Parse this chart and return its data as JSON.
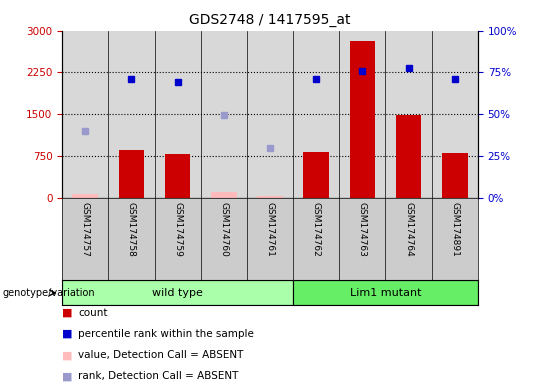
{
  "title": "GDS2748 / 1417595_at",
  "samples": [
    "GSM174757",
    "GSM174758",
    "GSM174759",
    "GSM174760",
    "GSM174761",
    "GSM174762",
    "GSM174763",
    "GSM174764",
    "GSM174891"
  ],
  "count_values": [
    null,
    850,
    780,
    null,
    null,
    820,
    2820,
    1480,
    810
  ],
  "count_absent": [
    60,
    null,
    null,
    110,
    30,
    null,
    null,
    null,
    null
  ],
  "rank_values": [
    null,
    2130,
    2080,
    null,
    null,
    2130,
    2280,
    2330,
    2130
  ],
  "rank_absent": [
    1200,
    null,
    null,
    null,
    900,
    null,
    null,
    null,
    null
  ],
  "rank_absent_percentile": [
    null,
    null,
    null,
    1480,
    null,
    null,
    null,
    null,
    null
  ],
  "ylim_left": [
    0,
    3000
  ],
  "ylim_right": [
    0,
    100
  ],
  "yticks_left": [
    0,
    750,
    1500,
    2250,
    3000
  ],
  "yticks_right": [
    0,
    25,
    50,
    75,
    100
  ],
  "ytick_labels_left": [
    "0",
    "750",
    "1500",
    "2250",
    "3000"
  ],
  "ytick_labels_right": [
    "0%",
    "25%",
    "50%",
    "75%",
    "100%"
  ],
  "groups": [
    {
      "label": "wild type",
      "indices": [
        0,
        1,
        2,
        3,
        4
      ],
      "color": "#aaffaa"
    },
    {
      "label": "Lim1 mutant",
      "indices": [
        5,
        6,
        7,
        8
      ],
      "color": "#66ee66"
    }
  ],
  "bar_color": "#cc0000",
  "bar_absent_color": "#ffbbbb",
  "rank_color": "#0000cc",
  "rank_absent_color": "#9999cc",
  "left_axis_color": "#cc0000",
  "right_axis_color": "#0000cc",
  "plot_bg_color": "#d8d8d8",
  "label_bg_color": "#cccccc",
  "grid_color": "#000000",
  "genotype_label": "genotype/variation",
  "legend_items": [
    {
      "label": "count",
      "color": "#cc0000"
    },
    {
      "label": "percentile rank within the sample",
      "color": "#0000cc"
    },
    {
      "label": "value, Detection Call = ABSENT",
      "color": "#ffbbbb"
    },
    {
      "label": "rank, Detection Call = ABSENT",
      "color": "#9999cc"
    }
  ]
}
